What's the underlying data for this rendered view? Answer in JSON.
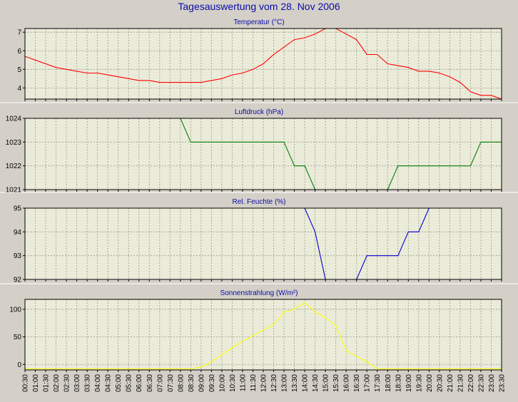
{
  "title": "Tagesauswertung vom 28. Nov 2006",
  "x_labels": [
    "00:30",
    "01:00",
    "01:30",
    "02:00",
    "02:30",
    "03:00",
    "03:30",
    "04:00",
    "04:30",
    "05:00",
    "05:30",
    "06:00",
    "06:30",
    "07:00",
    "07:30",
    "08:00",
    "08:30",
    "09:00",
    "09:30",
    "10:00",
    "10:30",
    "11:00",
    "11:30",
    "12:00",
    "12:30",
    "13:00",
    "13:30",
    "14:00",
    "14:30",
    "15:00",
    "15:30",
    "16:00",
    "16:30",
    "17:00",
    "17:30",
    "18:00",
    "18:30",
    "19:00",
    "19:30",
    "20:00",
    "20:30",
    "21:00",
    "21:30",
    "22:00",
    "22:30",
    "23:00",
    "23:30"
  ],
  "colors": {
    "plot_bg": "#ebebd9",
    "grid": "#9a9a8a",
    "panel_bg": "#d4d0c8",
    "title_text": "#0a0aa8",
    "axis_text": "#000000"
  },
  "chart_data": [
    {
      "type": "line",
      "title": "Temperatur (°C)",
      "color": "#ff0000",
      "ylim": [
        3.4,
        7.2
      ],
      "yticks": [
        4,
        5,
        6,
        7
      ],
      "x": [
        "00:30",
        "01:00",
        "01:30",
        "02:00",
        "02:30",
        "03:00",
        "03:30",
        "04:00",
        "04:30",
        "05:00",
        "05:30",
        "06:00",
        "06:30",
        "07:00",
        "07:30",
        "08:00",
        "08:30",
        "09:00",
        "09:30",
        "10:00",
        "10:30",
        "11:00",
        "11:30",
        "12:00",
        "12:30",
        "13:00",
        "13:30",
        "14:00",
        "14:30",
        "15:00",
        "15:30",
        "16:00",
        "16:30",
        "17:00",
        "17:30",
        "18:00",
        "18:30",
        "19:00",
        "19:30",
        "20:00",
        "20:30",
        "21:00",
        "21:30",
        "22:00",
        "22:30",
        "23:00",
        "23:30"
      ],
      "values": [
        5.7,
        5.5,
        5.3,
        5.1,
        5.0,
        4.9,
        4.8,
        4.8,
        4.7,
        4.6,
        4.5,
        4.4,
        4.4,
        4.3,
        4.3,
        4.3,
        4.3,
        4.3,
        4.4,
        4.5,
        4.7,
        4.8,
        5.0,
        5.3,
        5.8,
        6.2,
        6.6,
        6.7,
        6.9,
        7.2,
        7.2,
        6.9,
        6.6,
        5.8,
        5.8,
        5.3,
        5.2,
        5.1,
        4.9,
        4.9,
        4.8,
        4.6,
        4.3,
        3.8,
        3.6,
        3.6,
        3.4
      ]
    },
    {
      "type": "line",
      "title": "Luftdruck (hPa)",
      "color": "#008000",
      "ylim": [
        1021,
        1024
      ],
      "yticks": [
        1021,
        1022,
        1023,
        1024
      ],
      "x": [
        "00:30",
        "01:00",
        "01:30",
        "02:00",
        "02:30",
        "03:00",
        "03:30",
        "04:00",
        "04:30",
        "05:00",
        "05:30",
        "06:00",
        "06:30",
        "07:00",
        "07:30",
        "08:00",
        "08:30",
        "09:00",
        "09:30",
        "10:00",
        "10:30",
        "11:00",
        "11:30",
        "12:00",
        "12:30",
        "13:00",
        "13:30",
        "14:00",
        "14:30",
        "15:00",
        "15:30",
        "16:00",
        "16:30",
        "17:00",
        "17:30",
        "18:00",
        "18:30",
        "19:00",
        "19:30",
        "20:00",
        "20:30",
        "21:00",
        "21:30",
        "22:00",
        "22:30",
        "23:00",
        "23:30"
      ],
      "values": [
        1024,
        1024,
        1024,
        1024,
        1024,
        1024,
        1024,
        1024,
        1024,
        1024,
        1024,
        1024,
        1024,
        1024,
        1024,
        1024,
        1023,
        1023,
        1023,
        1023,
        1023,
        1023,
        1023,
        1023,
        1023,
        1023,
        1022,
        1022,
        1021,
        1021,
        1021,
        1021,
        1021,
        1021,
        1021,
        1021,
        1022,
        1022,
        1022,
        1022,
        1022,
        1022,
        1022,
        1022,
        1023,
        1023,
        1023
      ]
    },
    {
      "type": "line",
      "title": "Rel. Feuchte (%)",
      "color": "#0000cc",
      "ylim": [
        92,
        95
      ],
      "yticks": [
        92,
        93,
        94,
        95
      ],
      "x": [
        "00:30",
        "01:00",
        "01:30",
        "02:00",
        "02:30",
        "03:00",
        "03:30",
        "04:00",
        "04:30",
        "05:00",
        "05:30",
        "06:00",
        "06:30",
        "07:00",
        "07:30",
        "08:00",
        "08:30",
        "09:00",
        "09:30",
        "10:00",
        "10:30",
        "11:00",
        "11:30",
        "12:00",
        "12:30",
        "13:00",
        "13:30",
        "14:00",
        "14:30",
        "15:00",
        "15:30",
        "16:00",
        "16:30",
        "17:00",
        "17:30",
        "18:00",
        "18:30",
        "19:00",
        "19:30",
        "20:00",
        "20:30",
        "21:00",
        "21:30",
        "22:00",
        "22:30",
        "23:00",
        "23:30"
      ],
      "values": [
        95,
        95,
        95,
        95,
        95,
        95,
        95,
        95,
        95,
        95,
        95,
        95,
        95,
        95,
        95,
        95,
        95,
        95,
        95,
        95,
        95,
        95,
        95,
        95,
        95,
        95,
        95,
        95,
        94,
        92,
        92,
        92,
        92,
        93,
        93,
        93,
        93,
        94,
        94,
        95,
        95,
        95,
        95,
        95,
        95,
        95,
        95
      ]
    },
    {
      "type": "line",
      "title": "Sonnenstrahlung (W/m²)",
      "color": "#ffff00",
      "ylim": [
        -10,
        118
      ],
      "yticks": [
        0,
        50,
        100
      ],
      "x": [
        "00:30",
        "01:00",
        "01:30",
        "02:00",
        "02:30",
        "03:00",
        "03:30",
        "04:00",
        "04:30",
        "05:00",
        "05:30",
        "06:00",
        "06:30",
        "07:00",
        "07:30",
        "08:00",
        "08:30",
        "09:00",
        "09:30",
        "10:00",
        "10:30",
        "11:00",
        "11:30",
        "12:00",
        "12:30",
        "13:00",
        "13:30",
        "14:00",
        "14:30",
        "15:00",
        "15:30",
        "16:00",
        "16:30",
        "17:00",
        "17:30",
        "18:00",
        "18:30",
        "19:00",
        "19:30",
        "20:00",
        "20:30",
        "21:00",
        "21:30",
        "22:00",
        "22:30",
        "23:00",
        "23:30"
      ],
      "values": [
        -8,
        -8,
        -8,
        -8,
        -8,
        -8,
        -8,
        -8,
        -8,
        -8,
        -8,
        -8,
        -8,
        -8,
        -8,
        -8,
        -8,
        -5,
        5,
        18,
        30,
        42,
        52,
        62,
        72,
        95,
        100,
        112,
        95,
        85,
        70,
        25,
        15,
        5,
        -8,
        -8,
        -8,
        -8,
        -8,
        -8,
        -8,
        -8,
        -8,
        -8,
        -8,
        -8,
        -8
      ]
    }
  ]
}
